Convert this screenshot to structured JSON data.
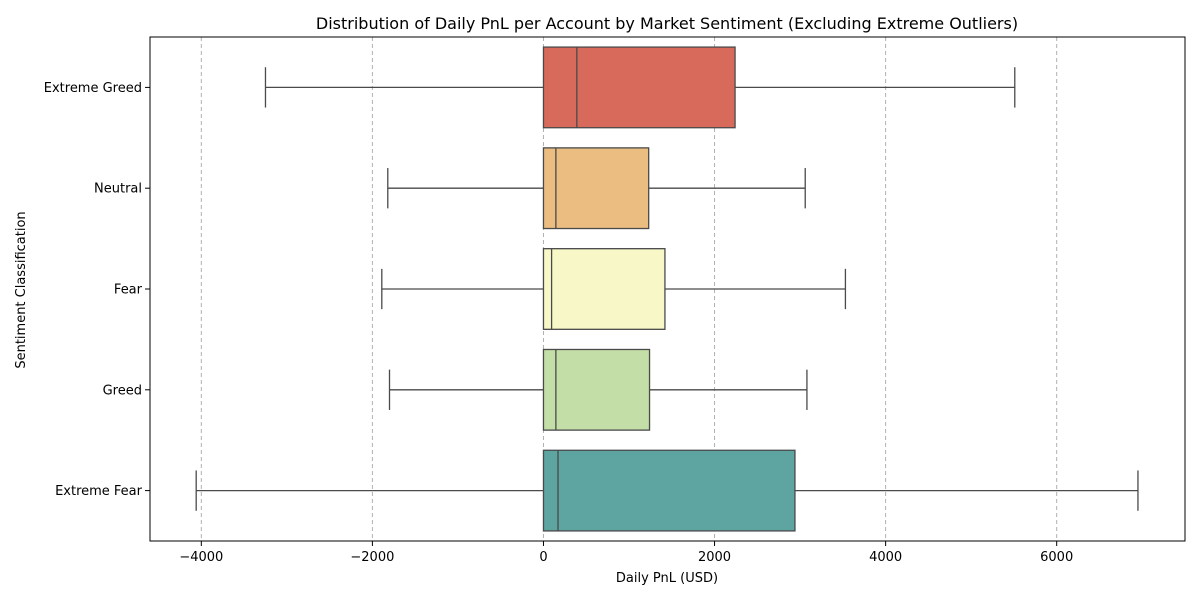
{
  "chart_data": {
    "type": "boxplot",
    "orientation": "horizontal",
    "title": "Distribution of Daily PnL per Account by Market Sentiment (Excluding Extreme Outliers)",
    "xlabel": "Daily PnL (USD)",
    "ylabel": "Sentiment Classification",
    "xlim": [
      -4600,
      7500
    ],
    "xticks": [
      -4000,
      -2000,
      0,
      2000,
      4000,
      6000
    ],
    "xtick_labels": [
      "−4000",
      "−2000",
      "0",
      "2000",
      "4000",
      "6000"
    ],
    "grid": "x-dashed",
    "categories": [
      "Extreme Greed",
      "Neutral",
      "Fear",
      "Greed",
      "Extreme Fear"
    ],
    "boxes": [
      {
        "category": "Extreme Greed",
        "whisker_low": -3250,
        "q1": 0,
        "median": 390,
        "q3": 2240,
        "whisker_high": 5510,
        "color": "#d76a5a"
      },
      {
        "category": "Neutral",
        "whisker_low": -1820,
        "q1": 0,
        "median": 145,
        "q3": 1230,
        "whisker_high": 3060,
        "color": "#ecbd80"
      },
      {
        "category": "Fear",
        "whisker_low": -1890,
        "q1": 0,
        "median": 95,
        "q3": 1420,
        "whisker_high": 3530,
        "color": "#f7f7c7"
      },
      {
        "category": "Greed",
        "whisker_low": -1800,
        "q1": 0,
        "median": 145,
        "q3": 1240,
        "whisker_high": 3080,
        "color": "#c3dea7"
      },
      {
        "category": "Extreme Fear",
        "whisker_low": -4060,
        "q1": 0,
        "median": 170,
        "q3": 2940,
        "whisker_high": 6950,
        "color": "#5ea4a1"
      }
    ]
  }
}
